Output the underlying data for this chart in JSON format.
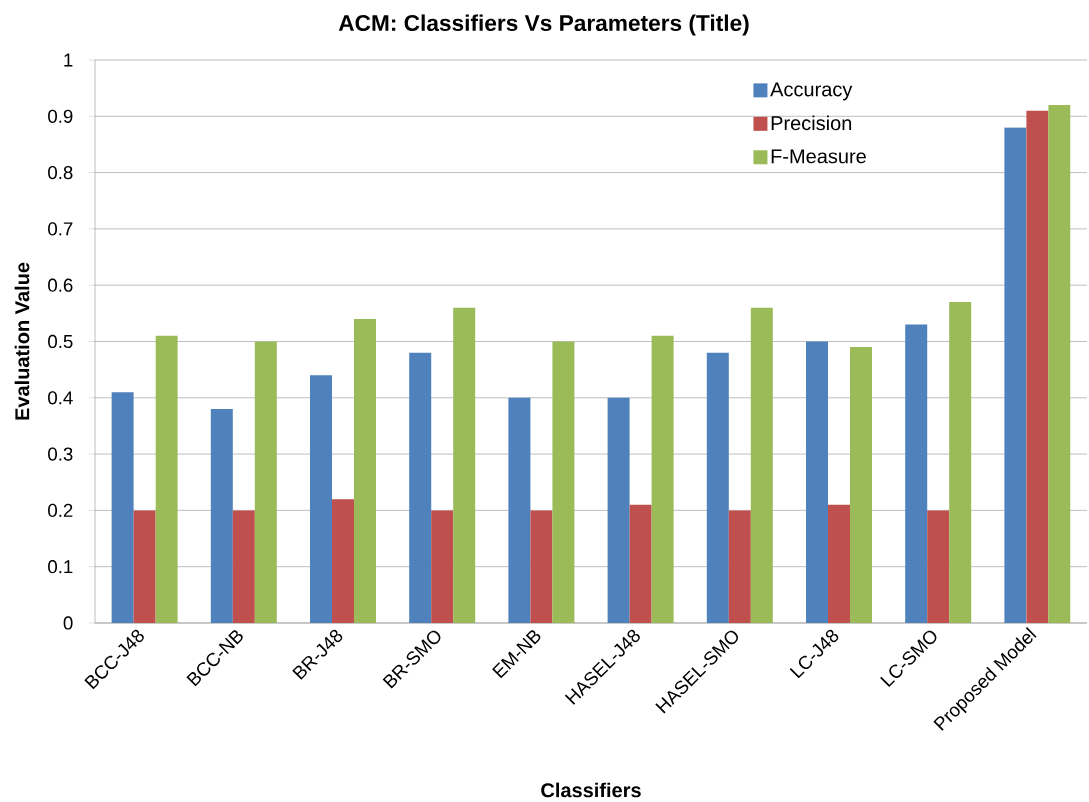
{
  "chart_data": {
    "type": "bar",
    "title": "ACM: Classifiers Vs Parameters (Title)",
    "xlabel": "Classifiers",
    "ylabel": "Evaluation Value",
    "categories": [
      "BCC-J48",
      "BCC-NB",
      "BR-J48",
      "BR-SMO",
      "EM-NB",
      "HASEL-J48",
      "HASEL-SMO",
      "LC-J48",
      "LC-SMO",
      "Proposed Model"
    ],
    "series": [
      {
        "name": "Accuracy",
        "color": "#4f81bd",
        "values": [
          0.41,
          0.38,
          0.44,
          0.48,
          0.4,
          0.4,
          0.48,
          0.5,
          0.53,
          0.88
        ]
      },
      {
        "name": "Precision",
        "color": "#c0504d",
        "values": [
          0.2,
          0.2,
          0.22,
          0.2,
          0.2,
          0.21,
          0.2,
          0.21,
          0.2,
          0.91
        ]
      },
      {
        "name": "F-Measure",
        "color": "#9bbb59",
        "values": [
          0.51,
          0.5,
          0.54,
          0.56,
          0.5,
          0.51,
          0.56,
          0.49,
          0.57,
          0.92
        ]
      }
    ],
    "ylim": [
      0,
      1
    ],
    "yticks": [
      0,
      0.1,
      0.2,
      0.3,
      0.4,
      0.5,
      0.6,
      0.7,
      0.8,
      0.9,
      1
    ],
    "grid": "y",
    "legend": "top right"
  }
}
